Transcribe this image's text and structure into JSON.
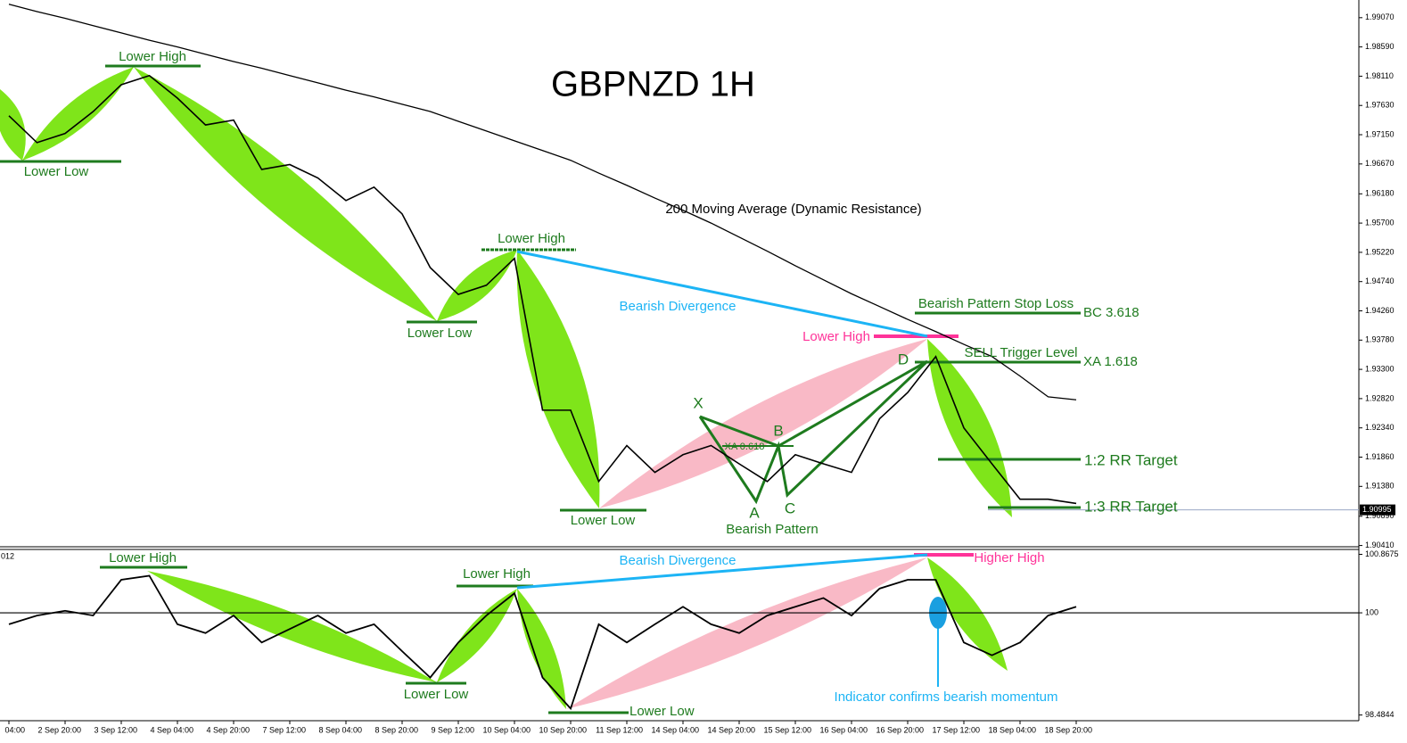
{
  "chart_data": {
    "type": "line",
    "title": "GBPNZD 1H",
    "categories": [
      "04:00",
      null,
      "2 Sep 20:00",
      null,
      "3 Sep 12:00",
      null,
      "4 Sep 04:00",
      null,
      "4 Sep 20:00",
      null,
      "7 Sep 12:00",
      null,
      "8 Sep 04:00",
      null,
      "8 Sep 20:00",
      null,
      "9 Sep 12:00",
      null,
      "10 Sep 04:00",
      null,
      "10 Sep 20:00",
      null,
      "11 Sep 12:00",
      null,
      "14 Sep 04:00",
      null,
      "14 Sep 20:00",
      null,
      "15 Sep 12:00",
      null,
      "16 Sep 04:00",
      null,
      "16 Sep 20:00",
      null,
      "17 Sep 12:00",
      null,
      "18 Sep 04:00",
      null,
      "18 Sep 20:00"
    ],
    "series": [
      {
        "color": "#000000",
        "values": [
          1.9746,
          1.9702,
          1.9717,
          1.9753,
          1.9797,
          1.9812,
          1.9775,
          1.9731,
          1.9739,
          1.9658,
          1.9666,
          1.9644,
          1.9607,
          1.9629,
          1.9585,
          1.9497,
          1.9453,
          1.9468,
          1.9512,
          1.9263,
          1.9263,
          1.9146,
          1.9205,
          1.9161,
          1.919,
          1.9205,
          1.9175,
          1.9146,
          1.919,
          1.9175,
          1.9161,
          1.9249,
          1.9292,
          1.9351,
          1.9234,
          1.9175,
          1.9117,
          1.9117,
          1.911
        ]
      },
      {
        "name": "200 Moving Average (Dynamic Resistance)",
        "color": "#000000",
        "values": [
          1.9929,
          1.9917,
          1.9906,
          1.9894,
          1.9882,
          1.987,
          1.9859,
          1.9847,
          1.9835,
          1.9824,
          1.9812,
          1.98,
          1.9788,
          1.9777,
          1.9765,
          1.9753,
          1.9737,
          1.9721,
          1.9705,
          1.9689,
          1.9673,
          1.9652,
          1.9632,
          1.9611,
          1.9591,
          1.957,
          1.9547,
          1.9524,
          1.95,
          1.9477,
          1.9454,
          1.9433,
          1.9412,
          1.9392,
          1.9371,
          1.9351,
          1.9319,
          1.9285,
          1.928
        ]
      }
    ],
    "ylim": [
      1.9036,
      1.9936
    ],
    "yticks": [
      {
        "value": 1.9907,
        "label": "1.99070"
      },
      {
        "value": 1.9859,
        "label": "1.98590"
      },
      {
        "value": 1.9811,
        "label": "1.98110"
      },
      {
        "value": 1.9763,
        "label": "1.97630"
      },
      {
        "value": 1.9715,
        "label": "1.97150"
      },
      {
        "value": 1.9667,
        "label": "1.96670"
      },
      {
        "value": 1.9618,
        "label": "1.96180"
      },
      {
        "value": 1.957,
        "label": "1.95700"
      },
      {
        "value": 1.9522,
        "label": "1.95220"
      },
      {
        "value": 1.9474,
        "label": "1.94740"
      },
      {
        "value": 1.9426,
        "label": "1.94260"
      },
      {
        "value": 1.9378,
        "label": "1.93780"
      },
      {
        "value": 1.933,
        "label": "1.93300"
      },
      {
        "value": 1.9282,
        "label": "1.92820"
      },
      {
        "value": 1.9234,
        "label": "1.92340"
      },
      {
        "value": 1.9186,
        "label": "1.91860"
      },
      {
        "value": 1.9138,
        "label": "1.91380"
      },
      {
        "value": 1.9089,
        "label": "1.90890"
      },
      {
        "value": 1.9041,
        "label": "1.90410"
      }
    ],
    "last_price": {
      "value": 1.90995,
      "label": "1.90995"
    },
    "annotations": [
      "Lower High",
      "Lower Low",
      "Lower High",
      "Lower Low",
      "Bearish Divergence",
      "Bearish Pattern Stop Loss",
      "BC 3.618",
      "Lower High",
      "SELL Trigger Level",
      "XA 1.618",
      "D",
      "X",
      "B",
      "XA 0.618",
      "1:2 RR Target",
      "1:3 RR Target",
      "A",
      "C",
      "Lower Low",
      "Bearish Pattern"
    ],
    "indicator": {
      "series": [
        {
          "color": "#000000",
          "values": [
            99.83,
            99.96,
            100.03,
            99.96,
            100.49,
            100.55,
            99.83,
            99.7,
            99.96,
            99.56,
            99.76,
            99.96,
            99.7,
            99.83,
            99.43,
            99.04,
            99.56,
            99.96,
            100.29,
            99.04,
            98.58,
            99.83,
            99.56,
            99.83,
            100.09,
            99.83,
            99.7,
            99.96,
            100.09,
            100.22,
            99.96,
            100.36,
            100.49,
            100.49,
            99.56,
            99.37,
            99.56,
            99.96,
            100.09
          ]
        }
      ],
      "ylim": [
        98.4,
        100.94
      ],
      "yticks": [
        100.8675,
        100,
        98.4844
      ],
      "annotations": [
        "012",
        "Lower High",
        "Bearish Divergence",
        "Higher High",
        "Lower High",
        "Lower Low",
        "Lower Low",
        "Indicator confirms bearish momentum"
      ]
    }
  }
}
